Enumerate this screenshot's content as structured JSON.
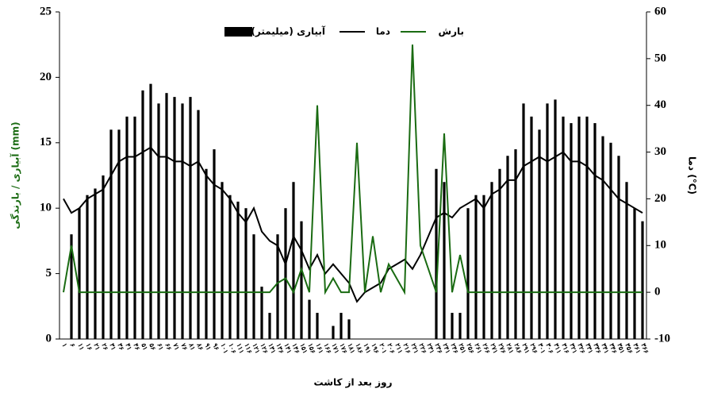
{
  "chart_data": {
    "type": "bar",
    "x_label": "روز بعد از کاشت",
    "y_label": "آبیاری / بارندگی (mm)",
    "y2_label": "دما (°C)",
    "categories": [
      "۱",
      "۶",
      "۱۱",
      "۱۶",
      "۲۱",
      "۲۶",
      "۳۱",
      "۳۶",
      "۴۱",
      "۴۶",
      "۵۱",
      "۵۶",
      "۶۱",
      "۶۶",
      "۷۱",
      "۷۶",
      "۸۱",
      "۸۶",
      "۹۱",
      "۹۶",
      "۱۰۱",
      "۱۰۶",
      "۱۱۱",
      "۱۱۶",
      "۱۲۱",
      "۱۲۶",
      "۱۳۱",
      "۱۳۶",
      "۱۴۱",
      "۱۴۶",
      "۱۵۱",
      "۱۵۶",
      "۱۶۱",
      "۱۶۶",
      "۱۷۱",
      "۱۷۶",
      "۱۸۱",
      "۱۸۶",
      "۱۹۱",
      "۱۹۶",
      "۲۰۱",
      "۲۰۶",
      "۲۱۱",
      "۲۱۶",
      "۲۲۱",
      "۲۲۶",
      "۲۳۱",
      "۲۳۶",
      "۲۴۱",
      "۲۴۶",
      "۲۵۱",
      "۲۵۶",
      "۲۶۱",
      "۲۶۶",
      "۲۷۱",
      "۲۷۶",
      "۲۸۱",
      "۲۸۶",
      "۲۹۱",
      "۲۹۶",
      "۳۰۱",
      "۳۰۶",
      "۳۱۱",
      "۳۱۶",
      "۳۲۱",
      "۳۲۶",
      "۳۳۱",
      "۳۳۶",
      "۳۴۱",
      "۳۴۶",
      "۳۵۱",
      "۳۵۶",
      "۳۶۱",
      "۳۶۶"
    ],
    "series": [
      {
        "name": "آبیاری (میلیمتر)",
        "type": "bar",
        "color": "#000000",
        "values": [
          0,
          8,
          10,
          11,
          11.5,
          12.5,
          16,
          16,
          17,
          17,
          19,
          19.5,
          18,
          18.8,
          18.5,
          18,
          18.5,
          17.5,
          13,
          14.5,
          12,
          11,
          10.5,
          10,
          8,
          4,
          2,
          8,
          10,
          12,
          9,
          3,
          2,
          0,
          1,
          2,
          1.5,
          0,
          0,
          0,
          0,
          0,
          0,
          0,
          0,
          0,
          0,
          13,
          12,
          2,
          2,
          10,
          11,
          11,
          12,
          13,
          14,
          14.5,
          18,
          17,
          16,
          18,
          18.3,
          17,
          16.5,
          17,
          17,
          16.5,
          15.5,
          15,
          14,
          12,
          10,
          9
        ]
      },
      {
        "name": "دما",
        "type": "line",
        "axis": "y2",
        "color": "#000000",
        "values": [
          20,
          17,
          18,
          20,
          21,
          22,
          25,
          28,
          29,
          29,
          30,
          31,
          29,
          29,
          28,
          28,
          27,
          28,
          25,
          23,
          22,
          20,
          17,
          15,
          18,
          13,
          11,
          10,
          6,
          12,
          9,
          5,
          8,
          4,
          6,
          4,
          2,
          -2,
          0,
          1,
          2,
          5,
          6,
          7,
          5,
          8,
          12,
          16,
          17,
          16,
          18,
          19,
          20,
          18,
          21,
          22,
          24,
          24,
          27,
          28,
          29,
          28,
          29,
          30,
          28,
          28,
          27,
          25,
          24,
          22,
          20,
          19,
          18,
          17
        ]
      },
      {
        "name": "بارش",
        "type": "line",
        "axis": "y2",
        "color": "#1a6b12",
        "values": [
          0,
          10,
          0,
          0,
          0,
          0,
          0,
          0,
          0,
          0,
          0,
          0,
          0,
          0,
          0,
          0,
          0,
          0,
          0,
          0,
          0,
          0,
          0,
          0,
          0,
          0,
          0,
          2,
          3,
          0,
          5,
          0,
          40,
          0,
          3,
          0,
          0,
          32,
          0,
          12,
          0,
          6,
          3,
          0,
          53,
          10,
          5,
          0,
          34,
          0,
          8,
          0,
          0,
          0,
          0,
          0,
          0,
          0,
          0,
          0,
          0,
          0,
          0,
          0,
          0,
          0,
          0,
          0,
          0,
          0,
          0,
          0,
          0,
          0
        ]
      }
    ],
    "ylim": [
      0,
      25
    ],
    "yticks": [
      0,
      5,
      10,
      15,
      20,
      25
    ],
    "y2lim": [
      -10,
      60
    ],
    "y2ticks": [
      -10,
      0,
      10,
      20,
      30,
      40,
      50,
      60
    ]
  }
}
